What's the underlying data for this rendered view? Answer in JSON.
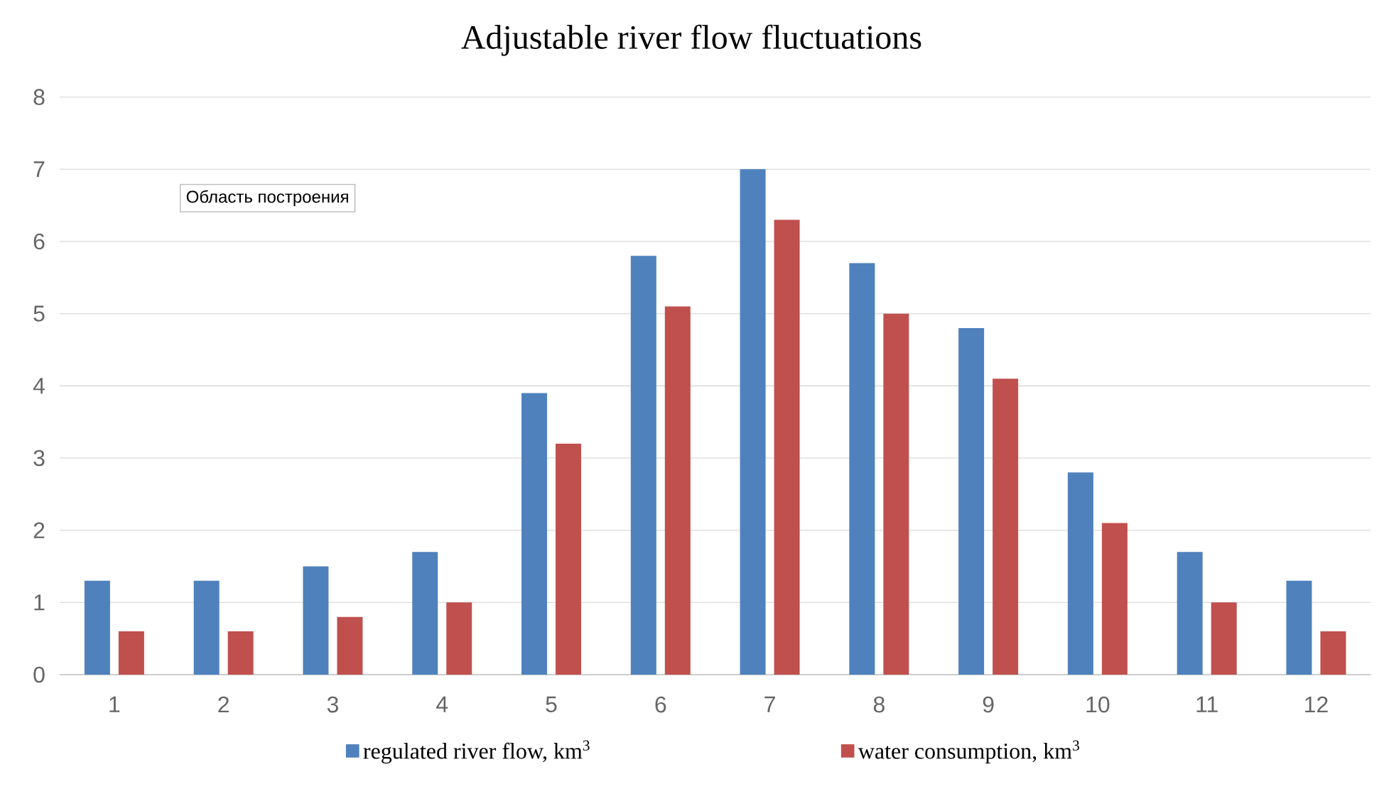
{
  "chart_data": {
    "type": "bar",
    "title": "Adjustable river flow fluctuations",
    "categories": [
      "1",
      "2",
      "3",
      "4",
      "5",
      "6",
      "7",
      "8",
      "9",
      "10",
      "11",
      "12"
    ],
    "series": [
      {
        "name": "regulated river flow, km$^{3}$",
        "color": "#4f81bd",
        "values": [
          1.3,
          1.3,
          1.5,
          1.7,
          3.9,
          5.8,
          7.0,
          5.7,
          4.8,
          2.8,
          1.7,
          1.3
        ]
      },
      {
        "name": "water consumption, km$^{3}$",
        "color": "#c0504d",
        "values": [
          0.6,
          0.6,
          0.8,
          1.0,
          3.2,
          5.1,
          6.3,
          5.0,
          4.1,
          2.1,
          1.0,
          0.6
        ]
      }
    ],
    "ylim": [
      0,
      8
    ],
    "yticks": [
      0,
      1,
      2,
      3,
      4,
      5,
      6,
      7,
      8
    ],
    "grid": "y",
    "legend": "bottom",
    "annotations": [
      "Область построения"
    ]
  }
}
